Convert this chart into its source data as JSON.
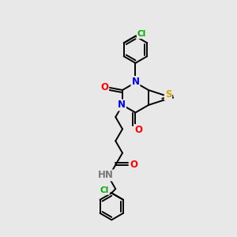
{
  "bg_color": "#e8e8e8",
  "bond_color": "#000000",
  "atom_colors": {
    "N": "#0000ee",
    "O": "#ff0000",
    "S": "#ccaa00",
    "Cl": "#00aa00",
    "C": "#000000",
    "H": "#777777"
  }
}
